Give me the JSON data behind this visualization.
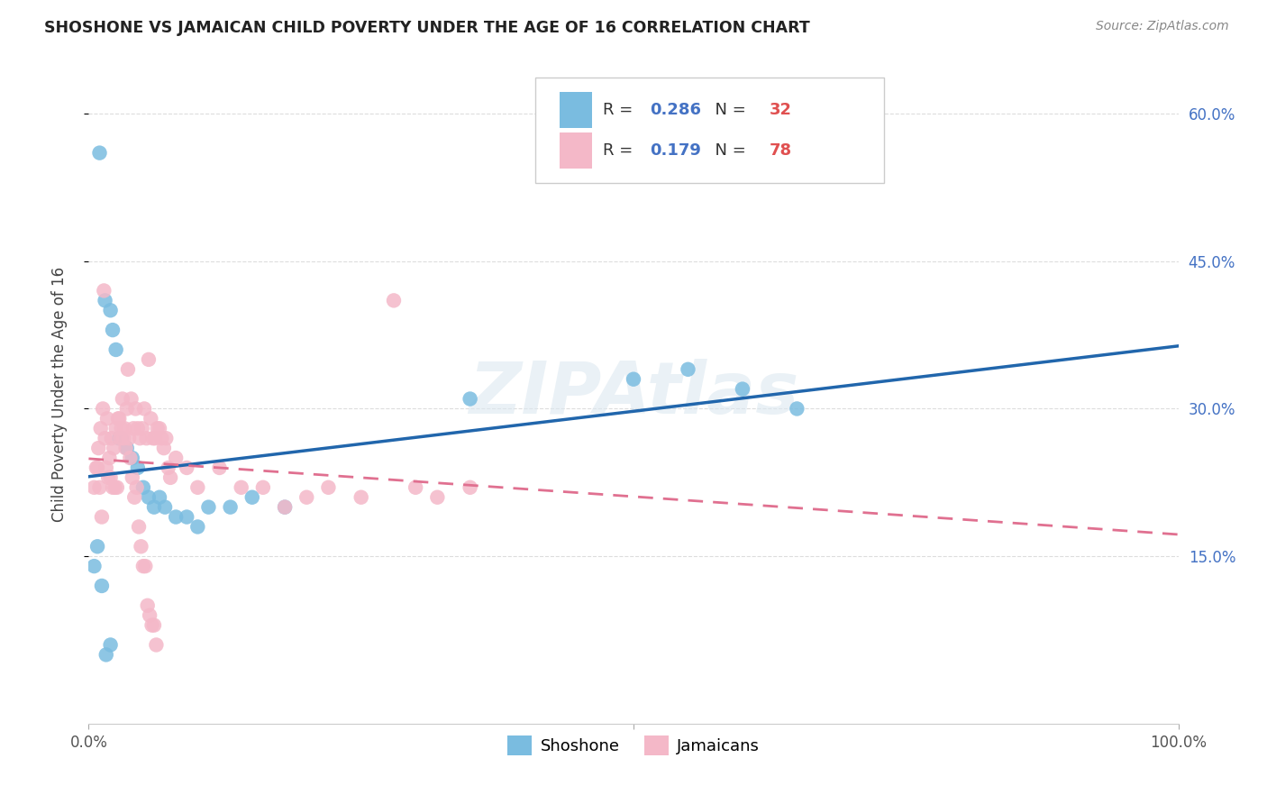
{
  "title": "SHOSHONE VS JAMAICAN CHILD POVERTY UNDER THE AGE OF 16 CORRELATION CHART",
  "source": "Source: ZipAtlas.com",
  "ylabel": "Child Poverty Under the Age of 16",
  "xlim": [
    0,
    1.0
  ],
  "ylim": [
    -0.02,
    0.65
  ],
  "yticks": [
    0.15,
    0.3,
    0.45,
    0.6
  ],
  "yticklabels": [
    "15.0%",
    "30.0%",
    "45.0%",
    "60.0%"
  ],
  "xtick_positions": [
    0.0,
    0.5,
    1.0
  ],
  "xticklabels": [
    "0.0%",
    "",
    "100.0%"
  ],
  "shoshone_color": "#7abce0",
  "jamaican_color": "#f4b8c8",
  "shoshone_line_color": "#2166ac",
  "jamaican_line_color": "#e07090",
  "R_shoshone": 0.286,
  "N_shoshone": 32,
  "R_jamaican": 0.179,
  "N_jamaican": 78,
  "legend_label_shoshone": "Shoshone",
  "legend_label_jamaican": "Jamaicans",
  "watermark": "ZIPAtlas",
  "background_color": "#ffffff",
  "grid_color": "#dddddd",
  "shoshone_x": [
    0.01,
    0.015,
    0.02,
    0.022,
    0.025,
    0.028,
    0.03,
    0.035,
    0.04,
    0.045,
    0.05,
    0.055,
    0.06,
    0.065,
    0.07,
    0.08,
    0.09,
    0.1,
    0.11,
    0.13,
    0.15,
    0.18,
    0.35,
    0.5,
    0.55,
    0.6,
    0.65,
    0.005,
    0.008,
    0.012,
    0.016,
    0.02
  ],
  "shoshone_y": [
    0.56,
    0.41,
    0.4,
    0.38,
    0.36,
    0.27,
    0.27,
    0.26,
    0.25,
    0.24,
    0.22,
    0.21,
    0.2,
    0.21,
    0.2,
    0.19,
    0.19,
    0.18,
    0.2,
    0.2,
    0.21,
    0.2,
    0.31,
    0.33,
    0.34,
    0.32,
    0.3,
    0.14,
    0.16,
    0.12,
    0.05,
    0.06
  ],
  "jamaican_x": [
    0.005,
    0.007,
    0.009,
    0.011,
    0.013,
    0.015,
    0.017,
    0.019,
    0.021,
    0.023,
    0.025,
    0.027,
    0.029,
    0.031,
    0.033,
    0.035,
    0.037,
    0.039,
    0.041,
    0.043,
    0.045,
    0.047,
    0.049,
    0.051,
    0.053,
    0.055,
    0.057,
    0.059,
    0.061,
    0.063,
    0.065,
    0.067,
    0.069,
    0.071,
    0.073,
    0.075,
    0.08,
    0.09,
    0.1,
    0.12,
    0.14,
    0.16,
    0.18,
    0.2,
    0.22,
    0.25,
    0.28,
    0.3,
    0.32,
    0.35,
    0.008,
    0.01,
    0.012,
    0.014,
    0.016,
    0.018,
    0.02,
    0.022,
    0.024,
    0.026,
    0.028,
    0.03,
    0.032,
    0.034,
    0.036,
    0.038,
    0.04,
    0.042,
    0.044,
    0.046,
    0.048,
    0.05,
    0.052,
    0.054,
    0.056,
    0.058,
    0.06,
    0.062
  ],
  "jamaican_y": [
    0.22,
    0.24,
    0.26,
    0.28,
    0.3,
    0.27,
    0.29,
    0.25,
    0.27,
    0.26,
    0.28,
    0.29,
    0.27,
    0.31,
    0.28,
    0.3,
    0.27,
    0.31,
    0.28,
    0.3,
    0.28,
    0.27,
    0.28,
    0.3,
    0.27,
    0.35,
    0.29,
    0.27,
    0.27,
    0.28,
    0.28,
    0.27,
    0.26,
    0.27,
    0.24,
    0.23,
    0.25,
    0.24,
    0.22,
    0.24,
    0.22,
    0.22,
    0.2,
    0.21,
    0.22,
    0.21,
    0.41,
    0.22,
    0.21,
    0.22,
    0.24,
    0.22,
    0.19,
    0.42,
    0.24,
    0.23,
    0.23,
    0.22,
    0.22,
    0.22,
    0.29,
    0.28,
    0.27,
    0.26,
    0.34,
    0.25,
    0.23,
    0.21,
    0.22,
    0.18,
    0.16,
    0.14,
    0.14,
    0.1,
    0.09,
    0.08,
    0.08,
    0.06
  ]
}
